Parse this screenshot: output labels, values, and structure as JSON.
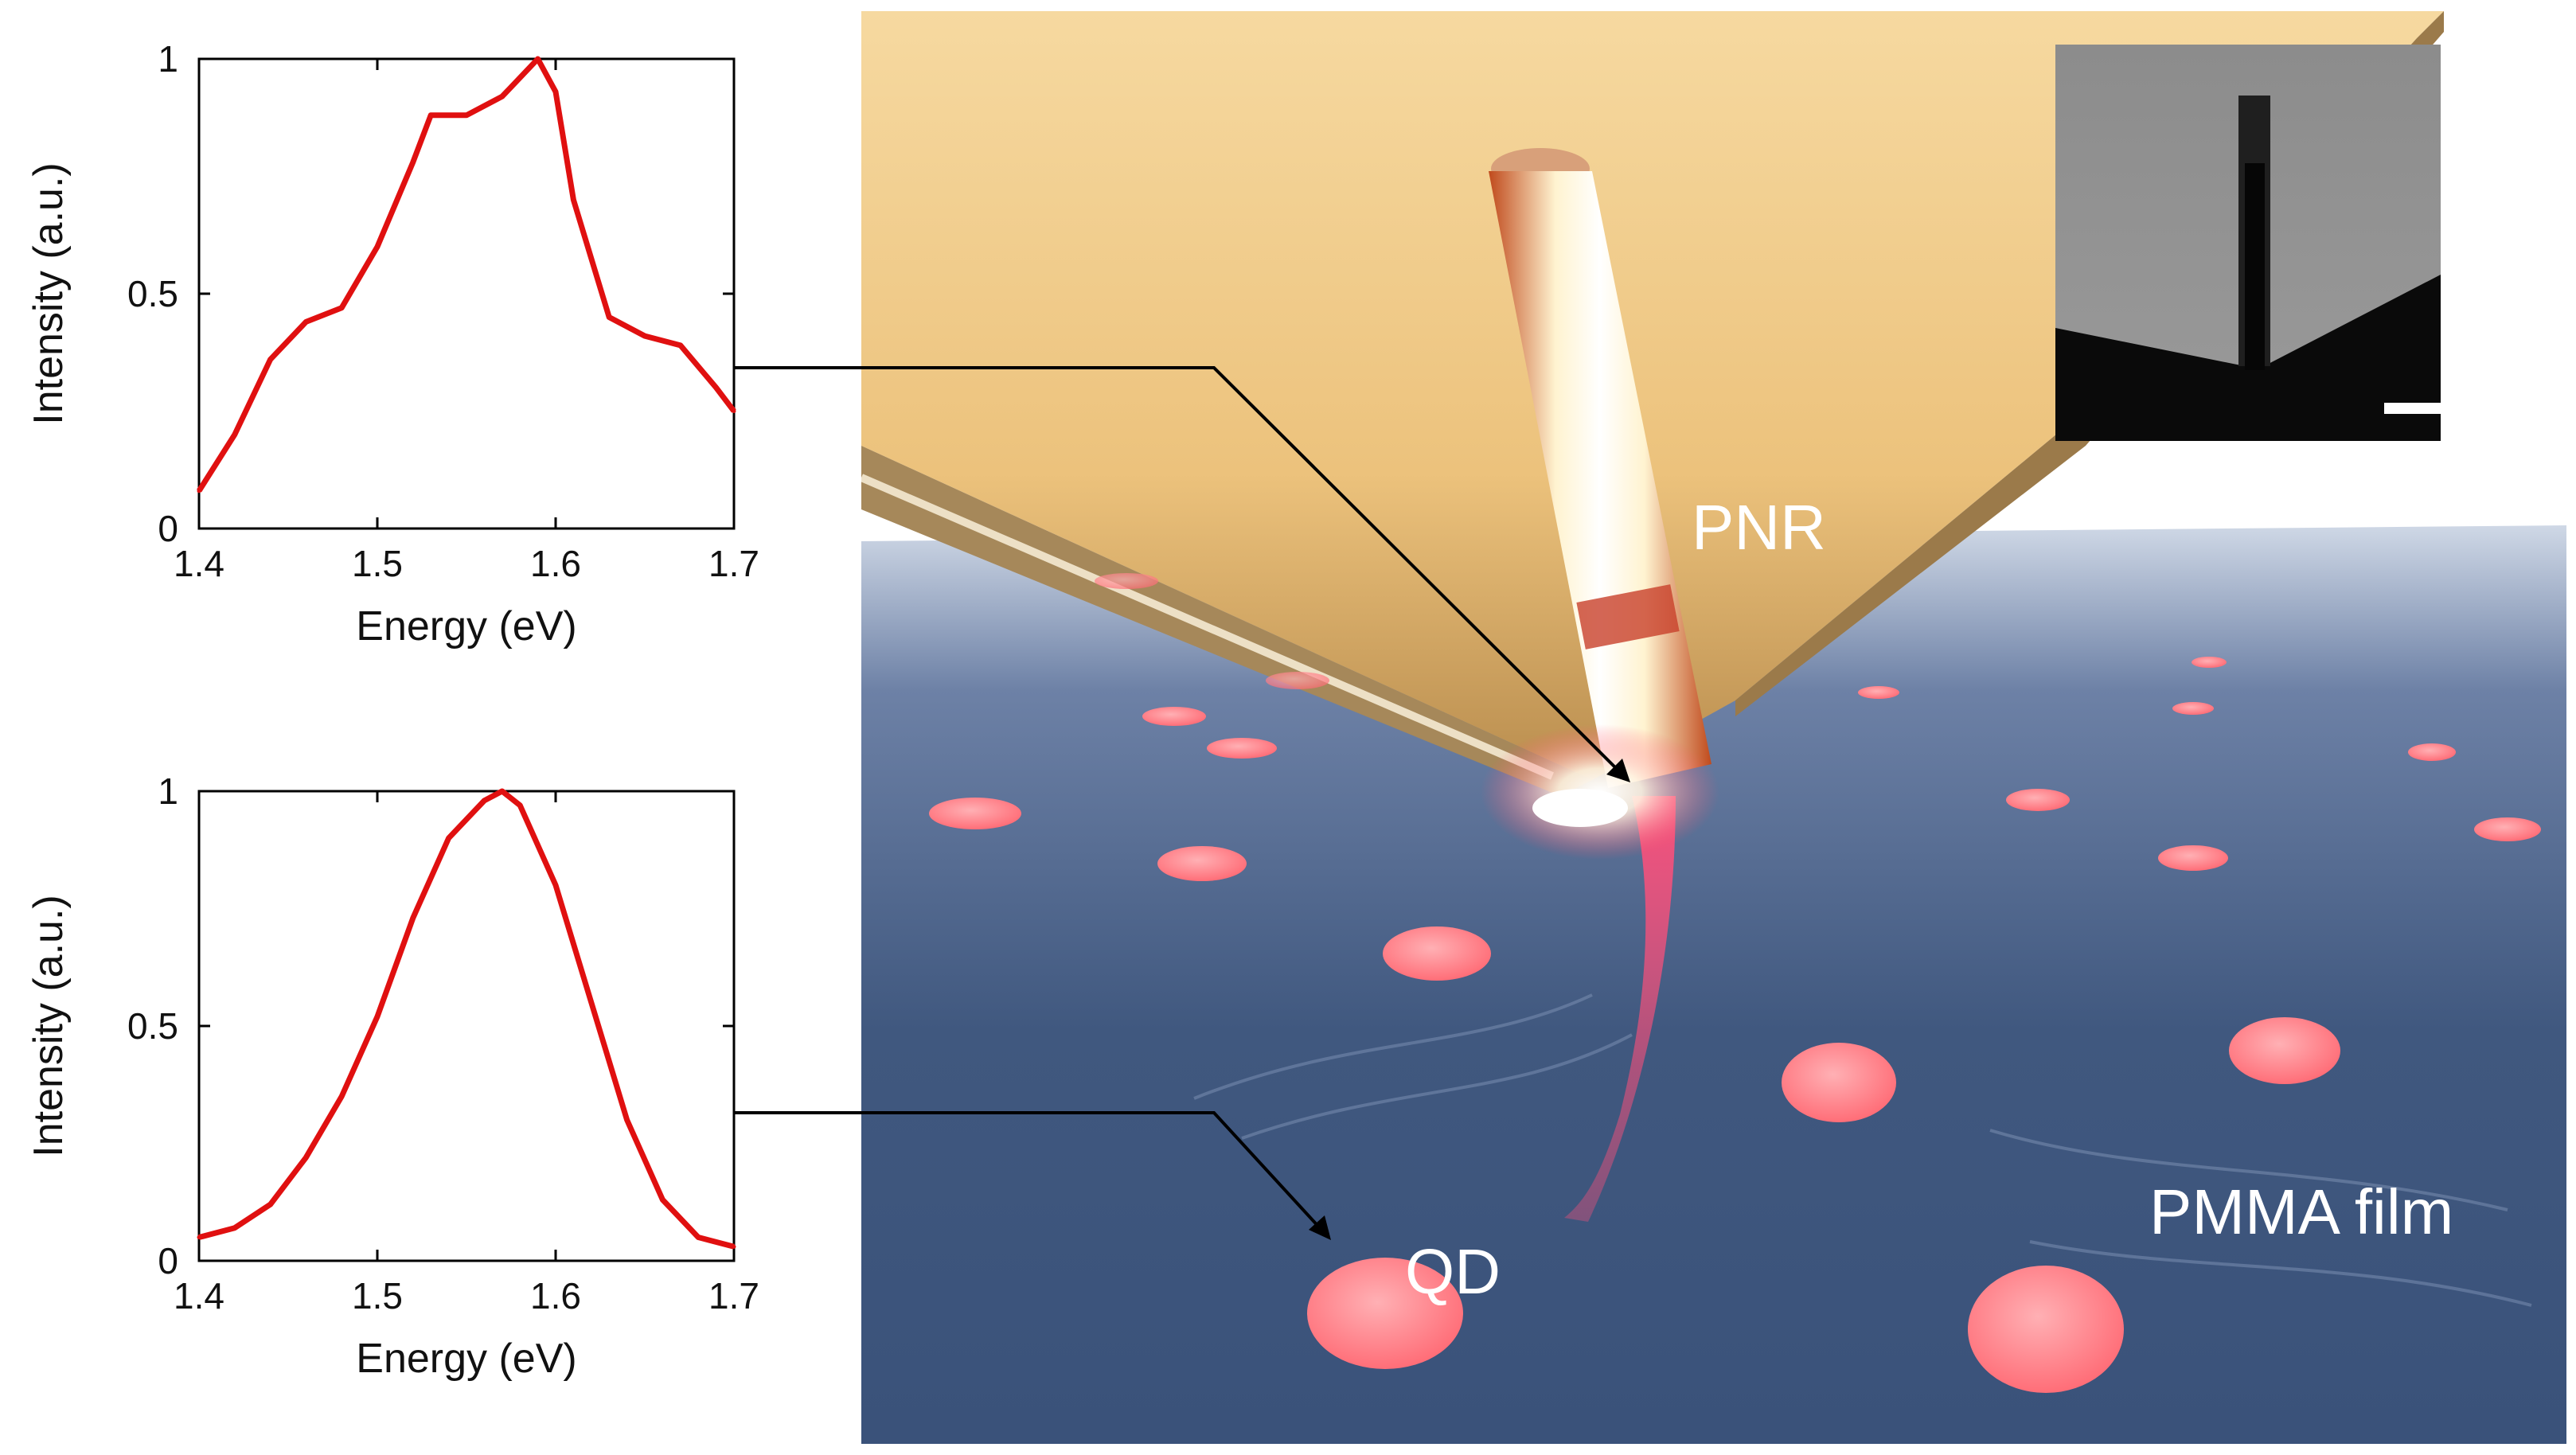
{
  "figure": {
    "scene_labels": {
      "pnr": "PNR",
      "qd": "QD",
      "film": "PMMA film"
    },
    "colors": {
      "spectrum_line": "#e01010",
      "gold": "#e8c47a",
      "film": "#3f5680",
      "qd_spot": "#ff7e84"
    },
    "icons": [
      "scale-bar-icon"
    ]
  },
  "chart_data": [
    {
      "type": "line",
      "xlabel": "Energy (eV)",
      "ylabel": "Intensity (a.u.)",
      "xlim": [
        1.4,
        1.7
      ],
      "ylim": [
        0,
        1
      ],
      "xticks": [
        "1.4",
        "1.5",
        "1.6",
        "1.7"
      ],
      "yticks": [
        "0",
        "0.5",
        "1"
      ],
      "grid": false,
      "x": [
        1.4,
        1.42,
        1.44,
        1.46,
        1.48,
        1.5,
        1.52,
        1.53,
        1.55,
        1.57,
        1.58,
        1.59,
        1.6,
        1.61,
        1.63,
        1.65,
        1.67,
        1.69,
        1.7
      ],
      "values": [
        0.08,
        0.2,
        0.36,
        0.44,
        0.47,
        0.6,
        0.78,
        0.88,
        0.88,
        0.92,
        0.96,
        1.0,
        0.93,
        0.7,
        0.45,
        0.41,
        0.39,
        0.3,
        0.25
      ]
    },
    {
      "type": "line",
      "xlabel": "Energy (eV)",
      "ylabel": "Intensity (a.u.)",
      "xlim": [
        1.4,
        1.7
      ],
      "ylim": [
        0,
        1
      ],
      "xticks": [
        "1.4",
        "1.5",
        "1.6",
        "1.7"
      ],
      "yticks": [
        "0",
        "0.5",
        "1"
      ],
      "grid": false,
      "x": [
        1.4,
        1.42,
        1.44,
        1.46,
        1.48,
        1.5,
        1.52,
        1.54,
        1.56,
        1.57,
        1.58,
        1.6,
        1.62,
        1.64,
        1.66,
        1.68,
        1.7
      ],
      "values": [
        0.05,
        0.07,
        0.12,
        0.22,
        0.35,
        0.52,
        0.73,
        0.9,
        0.98,
        1.0,
        0.97,
        0.8,
        0.55,
        0.3,
        0.13,
        0.05,
        0.03
      ]
    }
  ]
}
